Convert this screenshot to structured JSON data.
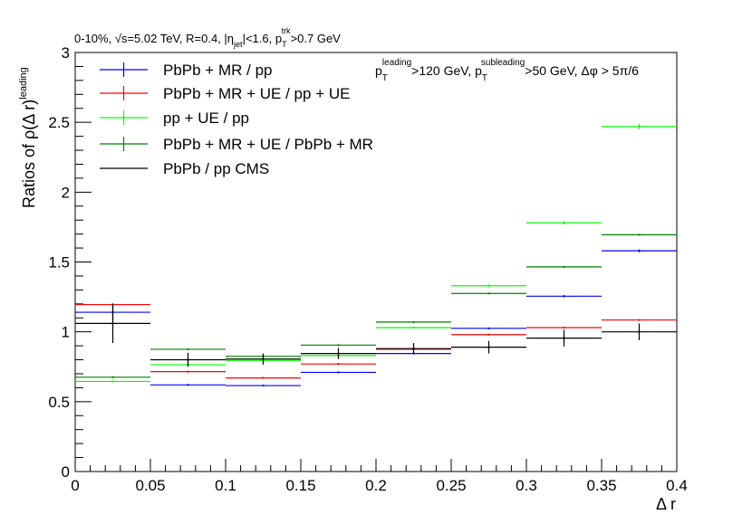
{
  "chart_data": {
    "type": "scatter",
    "title": "0-10%, √s=5.02 TeV, R=0.4, |η_jet|<1.6, p_T^trk>0.7 GeV",
    "title_parts": {
      "a": "0-10%, ",
      "sqrt": "√",
      "b": "s=5.02 TeV, R=0.4, |η",
      "jet": "jet",
      "c": "|<1.6, p",
      "T": "T",
      "trk": "trk",
      "d": ">0.7 GeV"
    },
    "annotation": "p_T^leading>120 GeV, p_T^subleading>50 GeV, Δφ > 5π/6",
    "annotation_parts": {
      "p1": "p",
      "T1": "T",
      "lead": "leading",
      "mid": ">120 GeV, p",
      "T2": "T",
      "sub": "subleading",
      "end": ">50 GeV, Δφ > 5π/6"
    },
    "xlabel": "Δ r",
    "ylabel": "Ratios of ρ(Δ r)^leading",
    "ylabel_parts": {
      "main": "Ratios of ρ(Δ r)",
      "sup": "leading"
    },
    "xlim": [
      0,
      0.4
    ],
    "ylim": [
      0,
      3
    ],
    "x_ticks": [
      0,
      0.05,
      0.1,
      0.15,
      0.2,
      0.25,
      0.3,
      0.35,
      0.4
    ],
    "x_tick_labels": [
      "0",
      "0.05",
      "0.1",
      "0.15",
      "0.2",
      "0.25",
      "0.3",
      "0.35",
      "0.4"
    ],
    "y_ticks": [
      0,
      0.5,
      1,
      1.5,
      2,
      2.5,
      3
    ],
    "y_tick_labels": [
      "0",
      "0.5",
      "1",
      "1.5",
      "2",
      "2.5",
      "3"
    ],
    "grid": false,
    "legend_position": "top-left",
    "bin_edges": [
      0,
      0.05,
      0.1,
      0.15,
      0.2,
      0.25,
      0.3,
      0.35,
      0.4
    ],
    "series": [
      {
        "name": "PbPb + MR / pp",
        "color": "#0000ff",
        "values": [
          1.14,
          0.62,
          0.615,
          0.71,
          0.845,
          1.025,
          1.255,
          1.58
        ],
        "errors": [
          0.06,
          0.005,
          0.005,
          0.005,
          0.005,
          0.005,
          0.008,
          0.01
        ]
      },
      {
        "name": "PbPb + MR + UE / pp + UE",
        "color": "#ff0000",
        "values": [
          1.195,
          0.715,
          0.67,
          0.77,
          0.875,
          0.98,
          1.03,
          1.085
        ],
        "errors": [
          0.01,
          0.005,
          0.005,
          0.005,
          0.005,
          0.005,
          0.005,
          0.005
        ]
      },
      {
        "name": "pp + UE / pp",
        "color": "#00ff00",
        "values": [
          0.645,
          0.765,
          0.795,
          0.83,
          1.03,
          1.33,
          1.78,
          2.47
        ],
        "errors": [
          0.005,
          0.005,
          0.005,
          0.005,
          0.005,
          0.008,
          0.012,
          0.02
        ]
      },
      {
        "name": "PbPb + MR + UE / PbPb + MR",
        "color": "#008000",
        "values": [
          0.675,
          0.875,
          0.825,
          0.905,
          1.07,
          1.275,
          1.465,
          1.695
        ],
        "errors": [
          0.005,
          0.005,
          0.005,
          0.005,
          0.005,
          0.005,
          0.005,
          0.005
        ]
      },
      {
        "name": "PbPb / pp CMS",
        "color": "#000000",
        "values": [
          1.06,
          0.8,
          0.805,
          0.845,
          0.88,
          0.89,
          0.955,
          1.0
        ],
        "errors": [
          0.14,
          0.05,
          0.04,
          0.04,
          0.04,
          0.045,
          0.06,
          0.06
        ]
      }
    ]
  }
}
